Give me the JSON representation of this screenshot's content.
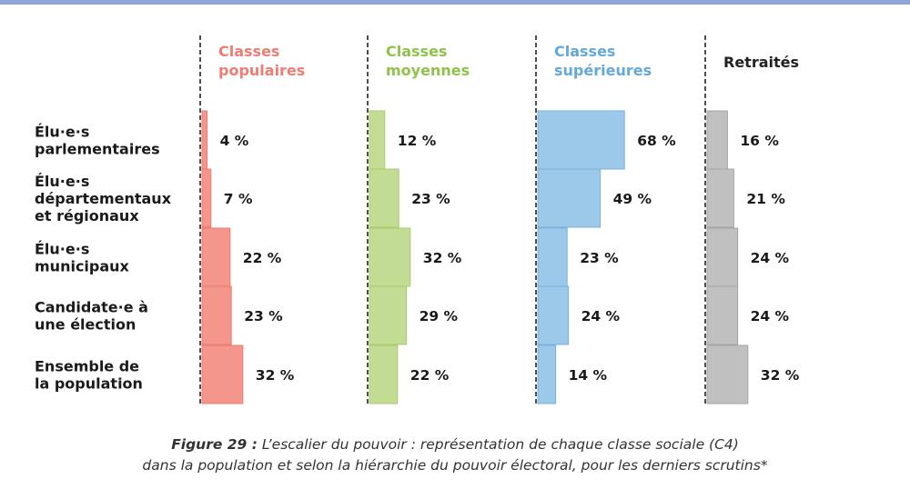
{
  "chart_data": {
    "type": "bar",
    "orientation": "horizontal",
    "categories": [
      [
        "Élu·e·s",
        "parlementaires"
      ],
      [
        "Élu·e·s",
        "départementaux",
        "et régionaux"
      ],
      [
        "Élu·e·s",
        "municipaux"
      ],
      [
        "Candidate·e à",
        "une élection"
      ],
      [
        "Ensemble de",
        "la population"
      ]
    ],
    "series": [
      {
        "name_lines": [
          "Classes",
          "populaires"
        ],
        "color": "#f4968c",
        "edge": "#ec7b70",
        "title_color": "#ee7d74",
        "values": [
          4,
          7,
          22,
          23,
          32
        ],
        "labels": [
          "4 %",
          "7 %",
          "22 %",
          "23 %",
          "32 %"
        ]
      },
      {
        "name_lines": [
          "Classes",
          "moyennes"
        ],
        "color": "#c3dc93",
        "edge": "#a9cb6e",
        "title_color": "#8ec24b",
        "values": [
          12,
          23,
          32,
          29,
          22
        ],
        "labels": [
          "12 %",
          "23 %",
          "32 %",
          "29 %",
          "22 %"
        ]
      },
      {
        "name_lines": [
          "Classes",
          "supérieures"
        ],
        "color": "#9cc8e9",
        "edge": "#78b1de",
        "title_color": "#64a8d9",
        "values": [
          68,
          49,
          23,
          24,
          14
        ],
        "labels": [
          "68 %",
          "49 %",
          "23 %",
          "24 %",
          "14 %"
        ]
      },
      {
        "name_lines": [
          "Retraités"
        ],
        "color": "#c0c0c0",
        "edge": "#a5a5a5",
        "title_color": "#222222",
        "values": [
          16,
          21,
          24,
          24,
          32
        ],
        "labels": [
          "16 %",
          "21 %",
          "24 %",
          "24 %",
          "32 %"
        ]
      }
    ],
    "xlim": [
      0,
      100
    ],
    "grid": false,
    "legend": "none"
  },
  "caption": {
    "label": "Figure 29 :",
    "line1": "L’escalier du pouvoir : représentation de chaque classe sociale (C4)",
    "line2": "dans la population et selon la hiérarchie du pouvoir électoral, pour les derniers scrutins*"
  }
}
